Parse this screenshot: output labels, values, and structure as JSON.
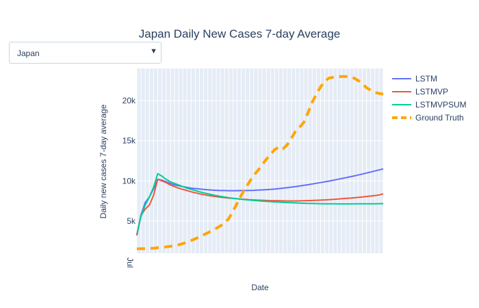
{
  "title": "Japan Daily New Cases 7-day Average",
  "dropdown": {
    "selected": "Japan",
    "arrow_icon": "triangle-down-icon"
  },
  "chart_data": {
    "type": "line",
    "title": "Japan Daily New Cases 7-day Average",
    "xlabel": "Date",
    "ylabel": "Daily new cases 7-day average",
    "ylim": [
      1000,
      24000
    ],
    "y_ticks": [
      5000,
      10000,
      15000,
      20000
    ],
    "y_tick_labels": [
      "5k",
      "10k",
      "15k",
      "20k"
    ],
    "x_ticks": [
      "Jul"
    ],
    "x_count": 60,
    "legend_position": "right",
    "grid": true,
    "series": [
      {
        "name": "LSTM",
        "color": "#636efa",
        "dash": "solid",
        "values": [
          3300,
          5800,
          7300,
          8000,
          9000,
          10200,
          10100,
          9900,
          9700,
          9500,
          9400,
          9300,
          9200,
          9100,
          9050,
          9000,
          8950,
          8900,
          8850,
          8830,
          8800,
          8800,
          8790,
          8790,
          8790,
          8800,
          8800,
          8820,
          8830,
          8850,
          8880,
          8910,
          8950,
          8990,
          9040,
          9100,
          9160,
          9230,
          9300,
          9370,
          9450,
          9530,
          9620,
          9710,
          9800,
          9890,
          9980,
          10080,
          10180,
          10290,
          10400,
          10510,
          10620,
          10740,
          10860,
          10980,
          11110,
          11240,
          11370,
          11500
        ]
      },
      {
        "name": "LSTMVP",
        "color": "#ef553b",
        "dash": "solid",
        "values": [
          3200,
          5700,
          6500,
          7000,
          8200,
          10200,
          10000,
          9800,
          9500,
          9300,
          9100,
          8950,
          8800,
          8650,
          8520,
          8400,
          8300,
          8200,
          8120,
          8050,
          7980,
          7920,
          7870,
          7820,
          7780,
          7740,
          7700,
          7670,
          7640,
          7610,
          7590,
          7570,
          7550,
          7540,
          7530,
          7520,
          7510,
          7510,
          7510,
          7520,
          7530,
          7550,
          7570,
          7590,
          7610,
          7640,
          7670,
          7700,
          7740,
          7780,
          7820,
          7860,
          7900,
          7950,
          8000,
          8060,
          8120,
          8180,
          8250,
          8400
        ]
      },
      {
        "name": "LSTMVPSUM",
        "color": "#00cc96",
        "dash": "solid",
        "values": [
          3400,
          5600,
          7000,
          8000,
          9200,
          10900,
          10600,
          10200,
          9900,
          9700,
          9500,
          9300,
          9100,
          8950,
          8800,
          8650,
          8520,
          8400,
          8280,
          8180,
          8080,
          7990,
          7910,
          7840,
          7780,
          7720,
          7670,
          7620,
          7570,
          7530,
          7490,
          7450,
          7420,
          7390,
          7360,
          7330,
          7300,
          7280,
          7260,
          7240,
          7220,
          7200,
          7190,
          7180,
          7170,
          7160,
          7150,
          7150,
          7140,
          7140,
          7140,
          7140,
          7140,
          7150,
          7150,
          7150,
          7160,
          7160,
          7170,
          7180
        ]
      },
      {
        "name": "Ground Truth",
        "color": "#ffa500",
        "dash": "dash",
        "values": [
          1550,
          1560,
          1580,
          1600,
          1630,
          1680,
          1730,
          1790,
          1860,
          1940,
          2050,
          2200,
          2380,
          2580,
          2800,
          3050,
          3300,
          3550,
          3820,
          4100,
          4400,
          4750,
          5300,
          6200,
          7200,
          8200,
          9100,
          9900,
          10700,
          11300,
          12000,
          12700,
          13300,
          13900,
          14200,
          14000,
          14500,
          15300,
          16200,
          16700,
          17300,
          18500,
          19800,
          20800,
          21700,
          22400,
          22800,
          22900,
          22950,
          23000,
          23000,
          22950,
          22800,
          22500,
          22100,
          21600,
          21300,
          21000,
          20900,
          20800
        ]
      }
    ]
  }
}
